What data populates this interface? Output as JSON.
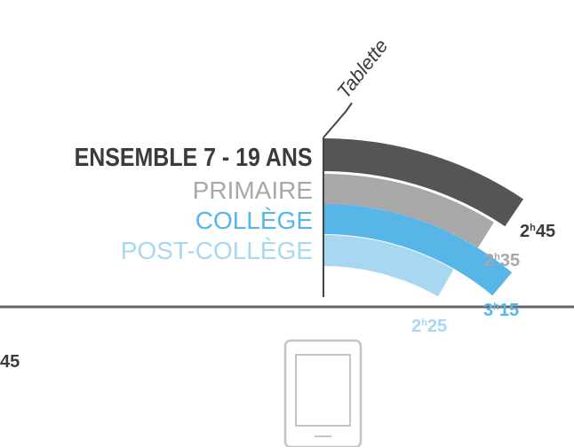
{
  "chart_data": {
    "type": "radial-bar",
    "title": "Tablette",
    "categories": [
      "ENSEMBLE 7 - 19 ANS",
      "PRIMAIRE",
      "COLLÈGE",
      "POST-COLLÈGE"
    ],
    "values_minutes": [
      165,
      155,
      195,
      145
    ],
    "value_labels": [
      {
        "h": "2",
        "unit": "h",
        "m": "45"
      },
      {
        "h": "2",
        "unit": "h",
        "m": "35"
      },
      {
        "h": "3",
        "unit": "h",
        "m": "15"
      },
      {
        "h": "2",
        "unit": "h",
        "m": "25"
      }
    ],
    "colors": [
      "#555555",
      "#a8a8a8",
      "#57b5e8",
      "#a7d7f1"
    ],
    "label_colors": [
      "#3b3b3b",
      "#a8a8a8",
      "#57b5e8",
      "#a7d7f1"
    ]
  },
  "left_value": "45",
  "icons": [
    "tablet-icon"
  ]
}
